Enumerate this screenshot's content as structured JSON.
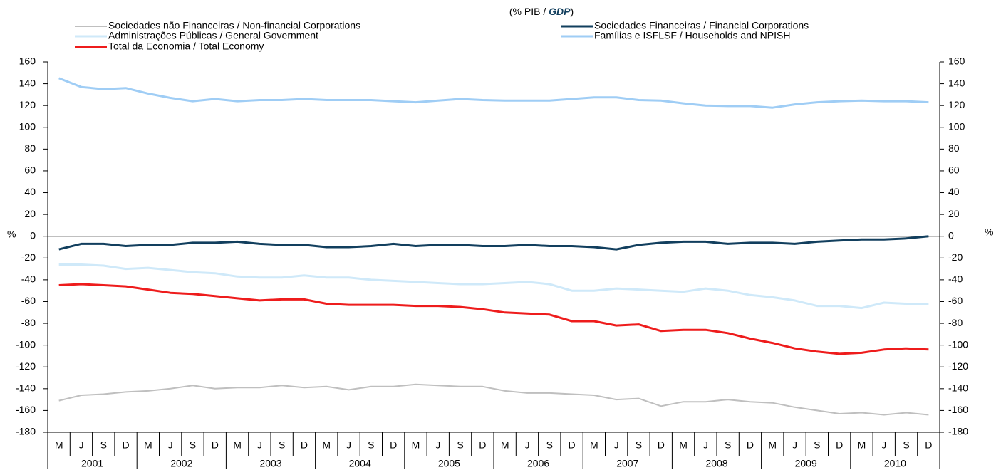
{
  "chart_data": {
    "type": "line",
    "subtitle": [
      "(% PIB / ",
      "GDP",
      ")"
    ],
    "y_axis_label": "%",
    "y2_axis_label": "%",
    "categories": [
      "M",
      "J",
      "S",
      "D",
      "M",
      "J",
      "S",
      "D",
      "M",
      "J",
      "S",
      "D",
      "M",
      "J",
      "S",
      "D",
      "M",
      "J",
      "S",
      "D",
      "M",
      "J",
      "S",
      "D",
      "M",
      "J",
      "S",
      "D",
      "M",
      "J",
      "S",
      "D",
      "M",
      "J",
      "S",
      "D",
      "M",
      "J",
      "S",
      "D"
    ],
    "years": [
      "2001",
      "2002",
      "2003",
      "2004",
      "2005",
      "2006",
      "2007",
      "2008",
      "2009",
      "2010"
    ],
    "ylim": [
      -180,
      160
    ],
    "yticks": [
      -180,
      -160,
      -140,
      -120,
      -100,
      -80,
      -60,
      -40,
      -20,
      0,
      20,
      40,
      60,
      80,
      100,
      120,
      140,
      160
    ],
    "y2lim": [
      -180,
      160
    ],
    "y2ticks": [
      -180,
      -160,
      -140,
      -120,
      -100,
      -80,
      -60,
      -40,
      -20,
      0,
      20,
      40,
      60,
      80,
      100,
      120,
      140,
      160
    ],
    "series": [
      {
        "name": "Sociedades não Financeiras / Non-financial Corporations",
        "color": "#bfbfbf",
        "width": 2,
        "values": [
          -151,
          -146,
          -145,
          -143,
          -142,
          -140,
          -137,
          -140,
          -139,
          -139,
          -137,
          -139,
          -138,
          -141,
          -138,
          -138,
          -136,
          -137,
          -138,
          -138,
          -142,
          -144,
          -144,
          -145,
          -146,
          -150,
          -149,
          -156,
          -152,
          -152,
          -150,
          -152,
          -153,
          -157,
          -160,
          -163,
          -162,
          -164,
          -162,
          -164
        ]
      },
      {
        "name": "Sociedades Financeiras / Financial Corporations",
        "color": "#123f5e",
        "width": 3,
        "values": [
          -12,
          -7,
          -7,
          -9,
          -8,
          -8,
          -6,
          -6,
          -5,
          -7,
          -8,
          -8,
          -10,
          -10,
          -9,
          -7,
          -9,
          -8,
          -8,
          -9,
          -9,
          -8,
          -9,
          -9,
          -10,
          -12,
          -8,
          -6,
          -5,
          -5,
          -7,
          -6,
          -6,
          -7,
          -5,
          -4,
          -3,
          -3,
          -2,
          0
        ]
      },
      {
        "name": "Administrações Públicas / General Government",
        "color": "#cfe9f9",
        "width": 3,
        "values": [
          -26,
          -26,
          -27,
          -30,
          -29,
          -31,
          -33,
          -34,
          -37,
          -38,
          -38,
          -36,
          -38,
          -38,
          -40,
          -41,
          -42,
          -43,
          -44,
          -44,
          -43,
          -42,
          -44,
          -50,
          -50,
          -48,
          -49,
          -50,
          -51,
          -48,
          -50,
          -54,
          -56,
          -59,
          -64,
          -64,
          -66,
          -61,
          -62,
          -62
        ]
      },
      {
        "name": "Famílias e ISFLSF / Households and NPISH",
        "color": "#9fcdf5",
        "width": 3,
        "values": [
          145,
          137,
          135,
          136,
          131,
          127,
          124,
          126,
          124,
          125,
          125,
          126,
          125,
          125,
          125,
          124,
          123,
          124.5,
          126,
          125,
          124.5,
          124.5,
          124.5,
          126,
          127.5,
          127.5,
          125,
          124.5,
          122,
          120,
          119.5,
          119.5,
          118,
          121,
          123,
          124,
          124.5,
          124,
          124,
          123
        ]
      },
      {
        "name": "Total da Economia / Total Economy",
        "color": "#ee1c1c",
        "width": 3,
        "values": [
          -45,
          -44,
          -45,
          -46,
          -49,
          -52,
          -53,
          -55,
          -57,
          -59,
          -58,
          -58,
          -62,
          -63,
          -63,
          -63,
          -64,
          -64,
          -65,
          -67,
          -70,
          -71,
          -72,
          -78,
          -78,
          -82,
          -81,
          -87,
          -86,
          -86,
          -89,
          -94,
          -98,
          -103,
          -106,
          -108,
          -107,
          -104,
          -103,
          -104
        ]
      }
    ]
  }
}
